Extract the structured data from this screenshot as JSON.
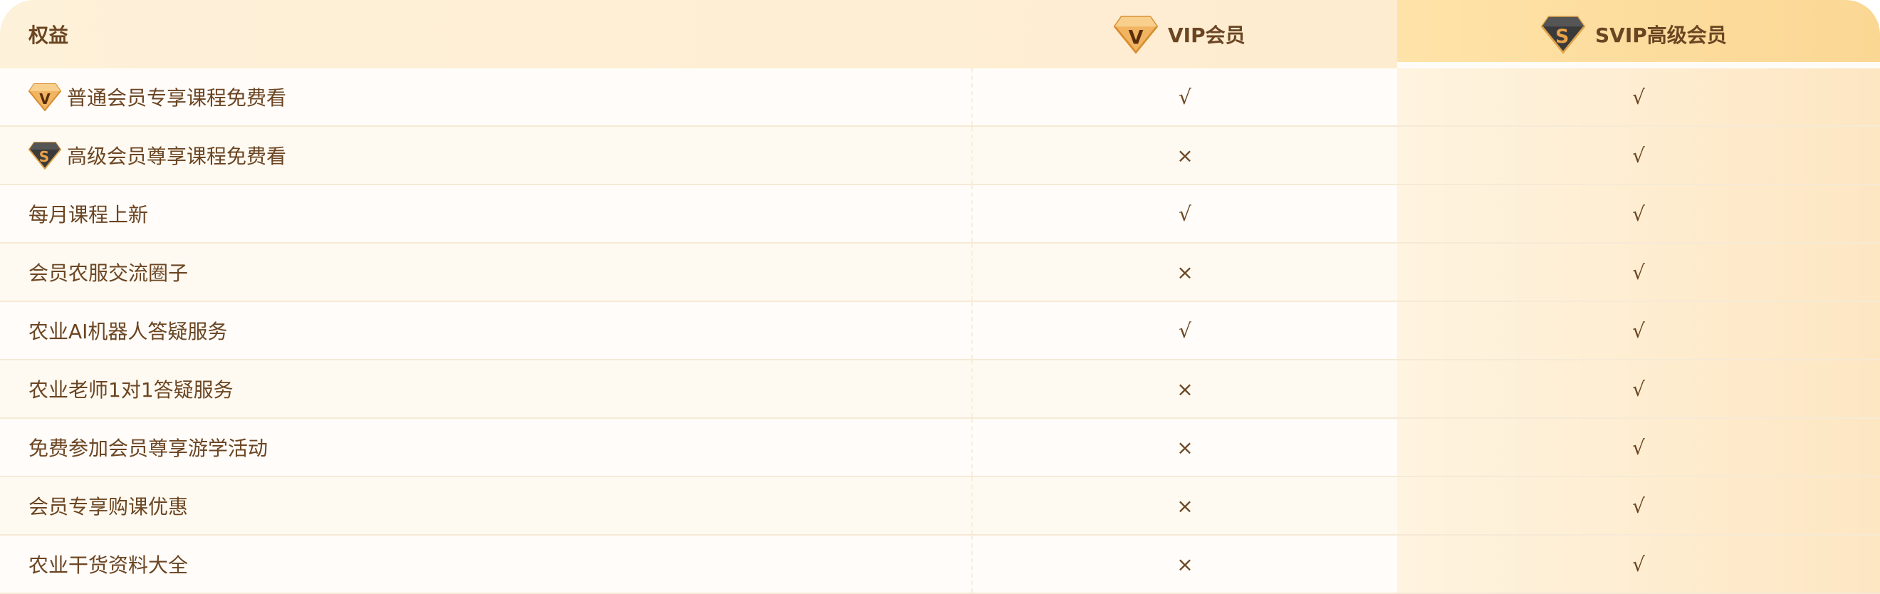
{
  "header": {
    "benefit": "权益",
    "vip": "VIP会员",
    "svip": "SVIP高级会员"
  },
  "icons": {
    "vip": "vip-diamond-icon",
    "svip": "svip-diamond-icon"
  },
  "colors": {
    "text": "#6b4522",
    "header_bg": "#fef1d9",
    "svip_header": "#fbd794",
    "svip_cell": "#fde6c2",
    "border": "#f6ead6"
  },
  "rows": [
    {
      "label": "普通会员专享课程免费看",
      "icon": "vip",
      "vip": "√",
      "svip": "√"
    },
    {
      "label": "高级会员尊享课程免费看",
      "icon": "svip",
      "vip": "×",
      "svip": "√"
    },
    {
      "label": "每月课程上新",
      "vip": "√",
      "svip": "√"
    },
    {
      "label": "会员农服交流圈子",
      "vip": "×",
      "svip": "√"
    },
    {
      "label": "农业AI机器人答疑服务",
      "vip": "√",
      "svip": "√"
    },
    {
      "label": "农业老师1对1答疑服务",
      "vip": "×",
      "svip": "√"
    },
    {
      "label": "免费参加会员尊享游学活动",
      "vip": "×",
      "svip": "√"
    },
    {
      "label": "会员专享购课优惠",
      "vip": "×",
      "svip": "√"
    },
    {
      "label": "农业干货资料大全",
      "vip": "×",
      "svip": "√"
    }
  ]
}
